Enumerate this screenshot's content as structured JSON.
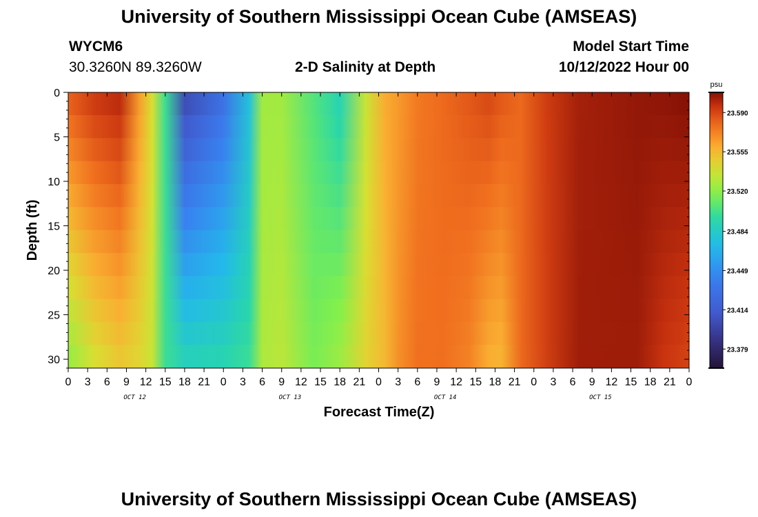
{
  "header": {
    "title": "University of Southern Mississippi Ocean Cube (AMSEAS)",
    "station_id": "WYCM6",
    "station_coords": "30.3260N  89.3260W",
    "plot_title": "2-D Salinity at Depth",
    "model_start_label": "Model Start Time",
    "model_start_value": "10/12/2022 Hour 00"
  },
  "footer": {
    "title": "University of Southern Mississippi Ocean Cube (AMSEAS)"
  },
  "chart_data": {
    "type": "heatmap",
    "title": "2-D Salinity at Depth",
    "xlabel": "Forecast Time(Z)",
    "ylabel": "Depth (ft)",
    "x_tick_labels": [
      "0",
      "3",
      "6",
      "9",
      "12",
      "15",
      "18",
      "21",
      "0",
      "3",
      "6",
      "9",
      "12",
      "15",
      "18",
      "21",
      "0",
      "3",
      "6",
      "9",
      "12",
      "15",
      "18",
      "21",
      "0",
      "3",
      "6",
      "9",
      "12",
      "15",
      "18",
      "21",
      "0"
    ],
    "x_day_labels": [
      "OCT 12",
      "OCT 13",
      "OCT 14",
      "OCT 15"
    ],
    "x_range_hours": [
      0,
      96
    ],
    "y_tick_labels": [
      "0",
      "5",
      "10",
      "15",
      "20",
      "25",
      "30"
    ],
    "y_range_ft": [
      0,
      31
    ],
    "colorbar": {
      "unit": "psu",
      "tick_labels": [
        "23.590",
        "23.555",
        "23.520",
        "23.484",
        "23.449",
        "23.414",
        "23.379"
      ],
      "range": [
        23.362,
        23.608
      ]
    },
    "salinity_psu_columns": [
      {
        "hour": 0,
        "surface": 23.584,
        "bottom": 23.52
      },
      {
        "hour": 4,
        "surface": 23.595,
        "bottom": 23.538
      },
      {
        "hour": 8,
        "surface": 23.6,
        "bottom": 23.548
      },
      {
        "hour": 11,
        "surface": 23.565,
        "bottom": 23.543
      },
      {
        "hour": 13,
        "surface": 23.54,
        "bottom": 23.535
      },
      {
        "hour": 15,
        "surface": 23.5,
        "bottom": 23.5
      },
      {
        "hour": 18,
        "surface": 23.4,
        "bottom": 23.492
      },
      {
        "hour": 24,
        "surface": 23.43,
        "bottom": 23.494
      },
      {
        "hour": 28,
        "surface": 23.475,
        "bottom": 23.5
      },
      {
        "hour": 30,
        "surface": 23.525,
        "bottom": 23.528
      },
      {
        "hour": 33,
        "surface": 23.525,
        "bottom": 23.532
      },
      {
        "hour": 38,
        "surface": 23.505,
        "bottom": 23.515
      },
      {
        "hour": 42,
        "surface": 23.49,
        "bottom": 23.525
      },
      {
        "hour": 46,
        "surface": 23.535,
        "bottom": 23.545
      },
      {
        "hour": 49,
        "surface": 23.56,
        "bottom": 23.555
      },
      {
        "hour": 51,
        "surface": 23.565,
        "bottom": 23.568
      },
      {
        "hour": 54,
        "surface": 23.575,
        "bottom": 23.578
      },
      {
        "hour": 58,
        "surface": 23.58,
        "bottom": 23.578
      },
      {
        "hour": 62,
        "surface": 23.585,
        "bottom": 23.572
      },
      {
        "hour": 65,
        "surface": 23.59,
        "bottom": 23.558
      },
      {
        "hour": 67,
        "surface": 23.585,
        "bottom": 23.556
      },
      {
        "hour": 70,
        "surface": 23.58,
        "bottom": 23.58
      },
      {
        "hour": 74,
        "surface": 23.593,
        "bottom": 23.592
      },
      {
        "hour": 79,
        "surface": 23.602,
        "bottom": 23.603
      },
      {
        "hour": 88,
        "surface": 23.605,
        "bottom": 23.603
      },
      {
        "hour": 92,
        "surface": 23.606,
        "bottom": 23.595
      },
      {
        "hour": 96,
        "surface": 23.608,
        "bottom": 23.59
      }
    ]
  }
}
